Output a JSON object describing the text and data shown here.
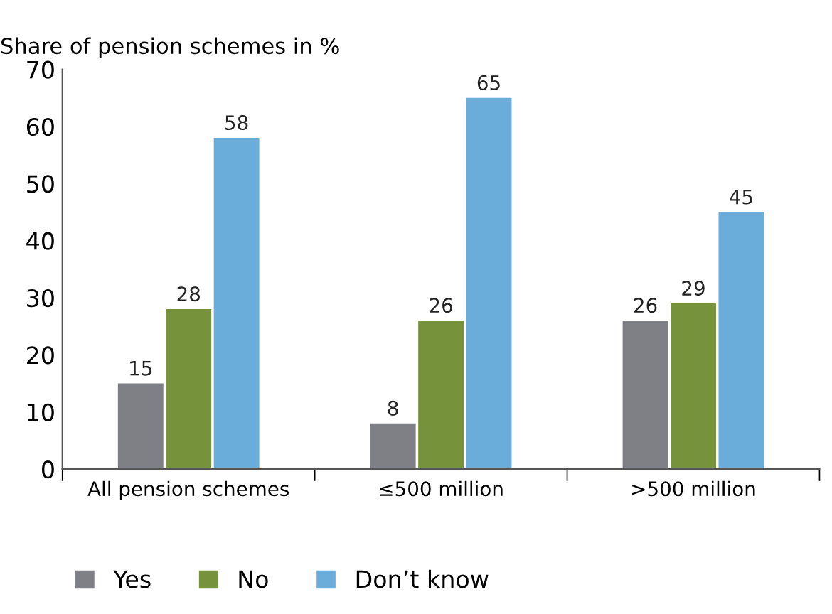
{
  "chart_data": {
    "type": "bar",
    "ylabel": "Share of pension schemes in %",
    "categories": [
      "All pension schemes",
      "≤500 million",
      ">500 million"
    ],
    "series": [
      {
        "name": "Yes",
        "color": "#7f7f86",
        "values": [
          15,
          8,
          26
        ]
      },
      {
        "name": "No",
        "color": "#76923b",
        "values": [
          28,
          26,
          29
        ]
      },
      {
        "name": "Don’t know",
        "color": "#6aaddb",
        "values": [
          58,
          65,
          45
        ]
      }
    ],
    "ylim": [
      0,
      70
    ],
    "yticks": [
      0,
      10,
      20,
      30,
      40,
      50,
      60,
      70
    ],
    "grid": false,
    "legend": "bottom",
    "data_labels": true
  }
}
